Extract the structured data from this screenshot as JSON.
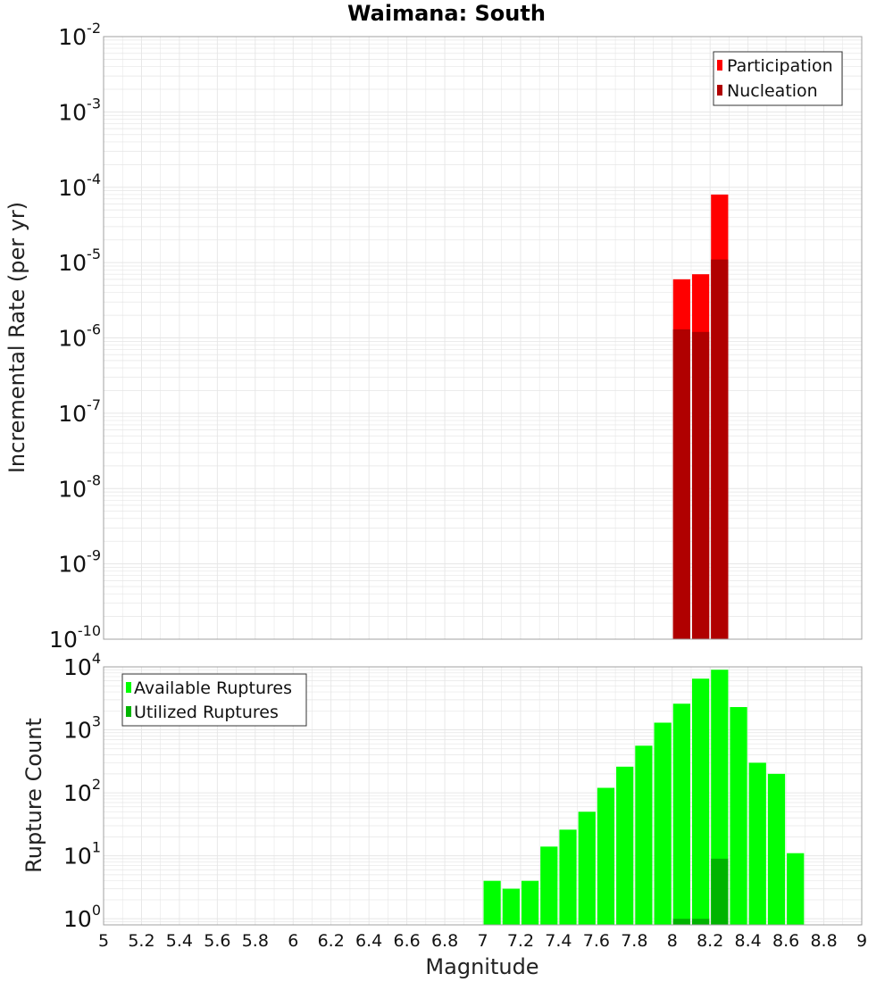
{
  "colors": {
    "participation": "#ff0000",
    "nucleation": "#b00000",
    "available": "#00ff00",
    "utilized": "#00b400",
    "grid": "#e6e6e6",
    "frame": "#a0a0a0"
  },
  "chart_data": [
    {
      "type": "bar",
      "title": "Waimana: South",
      "ylabel": "Incremental Rate (per yr)",
      "xlabel": "",
      "y_scale": "log",
      "ylim": [
        1e-10,
        0.01
      ],
      "xlim": [
        5,
        9
      ],
      "y_ticks": [
        {
          "base": "10",
          "exp": "-2"
        },
        {
          "base": "10",
          "exp": "-3"
        },
        {
          "base": "10",
          "exp": "-4"
        },
        {
          "base": "10",
          "exp": "-5"
        },
        {
          "base": "10",
          "exp": "-6"
        },
        {
          "base": "10",
          "exp": "-7"
        },
        {
          "base": "10",
          "exp": "-8"
        },
        {
          "base": "10",
          "exp": "-9"
        },
        {
          "base": "10",
          "exp": "-10"
        }
      ],
      "bar_width": 0.1,
      "legend": {
        "position": "top-right",
        "entries": [
          "Participation",
          "Nucleation"
        ]
      },
      "series": [
        {
          "name": "Participation",
          "x": [
            8.05,
            8.15,
            8.25
          ],
          "values": [
            6e-06,
            7e-06,
            8e-05
          ]
        },
        {
          "name": "Nucleation",
          "x": [
            8.05,
            8.15,
            8.25
          ],
          "values": [
            1.3e-06,
            1.2e-06,
            1.1e-05
          ]
        }
      ]
    },
    {
      "type": "bar",
      "title": "",
      "ylabel": "Rupture Count",
      "xlabel": "Magnitude",
      "y_scale": "log",
      "ylim": [
        0.8,
        10000
      ],
      "xlim": [
        5,
        9
      ],
      "x_ticks": [
        "5",
        "5.2",
        "5.4",
        "5.6",
        "5.8",
        "6",
        "6.2",
        "6.4",
        "6.6",
        "6.8",
        "7",
        "7.2",
        "7.4",
        "7.6",
        "7.8",
        "8",
        "8.2",
        "8.4",
        "8.6",
        "8.8",
        "9"
      ],
      "y_ticks": [
        {
          "base": "10",
          "exp": "4"
        },
        {
          "base": "10",
          "exp": "3"
        },
        {
          "base": "10",
          "exp": "2"
        },
        {
          "base": "10",
          "exp": "1"
        },
        {
          "base": "10",
          "exp": "0"
        }
      ],
      "bar_width": 0.1,
      "legend": {
        "position": "top-left",
        "entries": [
          "Available Ruptures",
          "Utilized Ruptures"
        ]
      },
      "series": [
        {
          "name": "Available Ruptures",
          "x": [
            7.05,
            7.15,
            7.25,
            7.35,
            7.45,
            7.55,
            7.65,
            7.75,
            7.85,
            7.95,
            8.05,
            8.15,
            8.25,
            8.35,
            8.45,
            8.55,
            8.65
          ],
          "values": [
            4,
            3,
            4,
            14,
            26,
            50,
            120,
            260,
            560,
            1300,
            2600,
            6500,
            9000,
            2300,
            300,
            200,
            11
          ]
        },
        {
          "name": "Utilized Ruptures",
          "x": [
            8.05,
            8.15,
            8.25
          ],
          "values": [
            1,
            1,
            9
          ]
        }
      ]
    }
  ]
}
